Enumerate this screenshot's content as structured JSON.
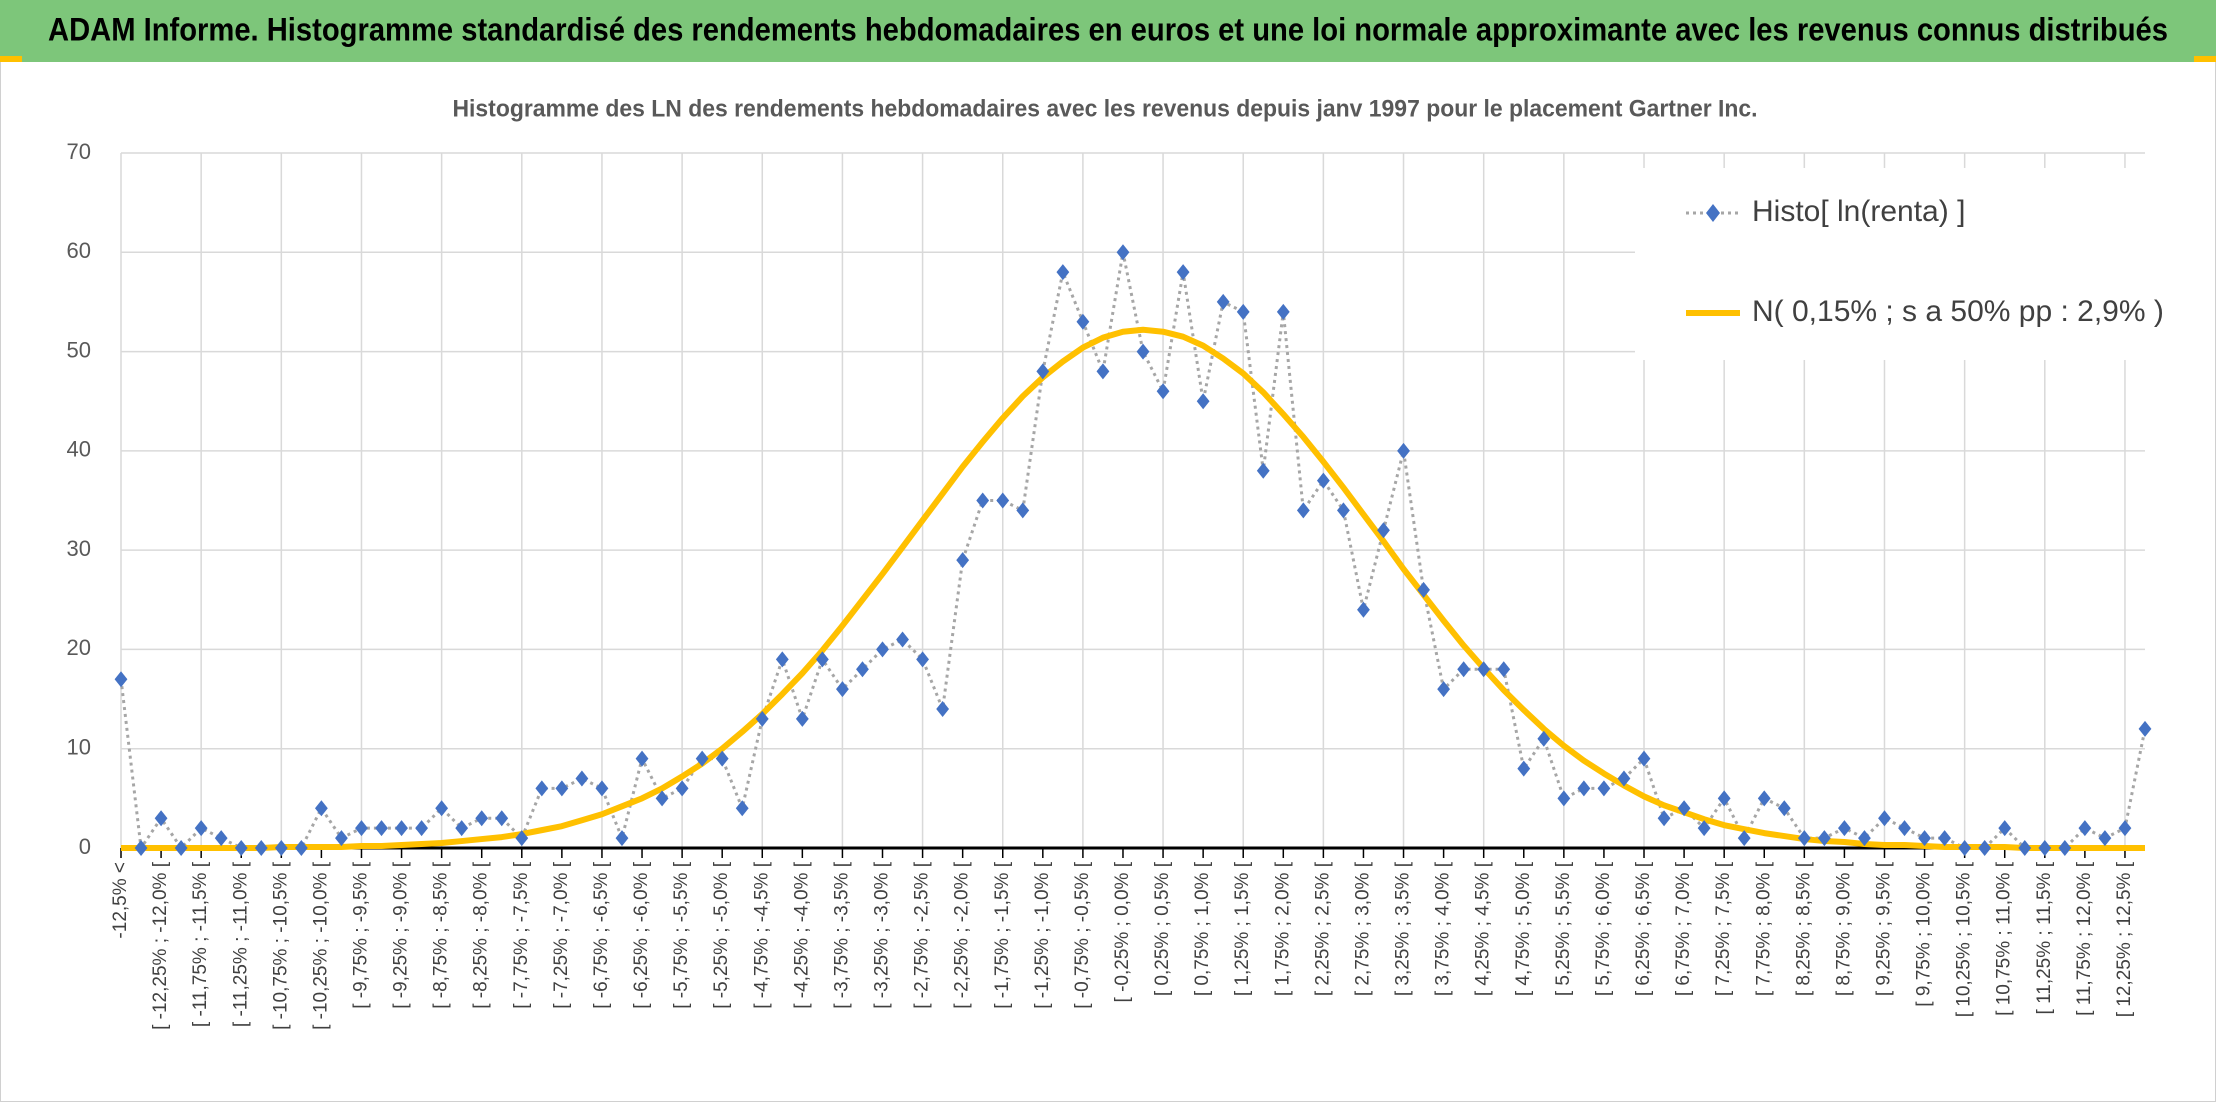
{
  "header": {
    "title": "ADAM Informe. Histogramme standardisé des rendements hebdomadaires en euros et une loi normale approximante avec les revenus connus distribués"
  },
  "chart_data": {
    "type": "line",
    "title": "Histogramme des LN des rendements hebdomadaires avec les revenus depuis janv 1997 pour le placement Gartner Inc.",
    "categories": [
      "-12,5% <",
      null,
      "[ -12,25% ; -12,0% [",
      null,
      "[ -11,75% ; -11,5% [",
      null,
      "[ -11,25% ; -11,0% [",
      null,
      "[ -10,75% ; -10,5% [",
      null,
      "[ -10,25% ; -10,0% [",
      null,
      "[ -9,75% ; -9,5% [",
      null,
      "[ -9,25% ; -9,0% [",
      null,
      "[ -8,75% ; -8,5% [",
      null,
      "[ -8,25% ; -8,0% [",
      null,
      "[ -7,75% ; -7,5% [",
      null,
      "[ -7,25% ; -7,0% [",
      null,
      "[ -6,75% ; -6,5% [",
      null,
      "[ -6,25% ; -6,0% [",
      null,
      "[ -5,75% ; -5,5% [",
      null,
      "[ -5,25% ; -5,0% [",
      null,
      "[ -4,75% ; -4,5% [",
      null,
      "[ -4,25% ; -4,0% [",
      null,
      "[ -3,75% ; -3,5% [",
      null,
      "[ -3,25% ; -3,0% [",
      null,
      "[ -2,75% ; -2,5% [",
      null,
      "[ -2,25% ; -2,0% [",
      null,
      "[ -1,75% ; -1,5% [",
      null,
      "[ -1,25% ; -1,0% [",
      null,
      "[ -0,75% ; -0,5% [",
      null,
      "[ -0,25% ; 0,0% [",
      null,
      "[ 0,25% ; 0,5% [",
      null,
      "[ 0,75% ; 1,0% [",
      null,
      "[ 1,25% ; 1,5% [",
      null,
      "[ 1,75% ; 2,0% [",
      null,
      "[ 2,25% ; 2,5% [",
      null,
      "[ 2,75% ; 3,0% [",
      null,
      "[ 3,25% ; 3,5% [",
      null,
      "[ 3,75% ; 4,0% [",
      null,
      "[ 4,25% ; 4,5% [",
      null,
      "[ 4,75% ; 5,0% [",
      null,
      "[ 5,25% ; 5,5% [",
      null,
      "[ 5,75% ; 6,0% [",
      null,
      "[ 6,25% ; 6,5% [",
      null,
      "[ 6,75% ; 7,0% [",
      null,
      "[ 7,25% ; 7,5% [",
      null,
      "[ 7,75% ; 8,0% [",
      null,
      "[ 8,25% ; 8,5% [",
      null,
      "[ 8,75% ; 9,0% [",
      null,
      "[ 9,25% ; 9,5% [",
      null,
      "[ 9,75% ; 10,0% [",
      null,
      "[ 10,25% ; 10,5% [",
      null,
      "[ 10,75% ; 11,0% [",
      null,
      "[ 11,25% ; 11,5% [",
      null,
      "[ 11,75% ; 12,0% [",
      null,
      "[ 12,25% ; 12,5% [",
      null
    ],
    "series": [
      {
        "name": "Histo[ ln(renta) ]",
        "color": "#4472c4",
        "line_color": "#a6a6a6",
        "marker": "diamond",
        "values": [
          17,
          0,
          3,
          0,
          2,
          1,
          0,
          0,
          0,
          0,
          4,
          1,
          2,
          2,
          2,
          2,
          4,
          2,
          3,
          3,
          1,
          6,
          6,
          7,
          6,
          1,
          9,
          5,
          6,
          9,
          9,
          4,
          13,
          19,
          13,
          19,
          16,
          18,
          20,
          21,
          19,
          14,
          29,
          35,
          35,
          34,
          48,
          58,
          53,
          48,
          60,
          50,
          46,
          58,
          45,
          55,
          54,
          38,
          54,
          34,
          37,
          34,
          24,
          32,
          40,
          26,
          16,
          18,
          18,
          18,
          8,
          11,
          5,
          6,
          6,
          7,
          9,
          3,
          4,
          2,
          5,
          1,
          5,
          4,
          1,
          1,
          2,
          1,
          3,
          2,
          1,
          1,
          0,
          0,
          2,
          0,
          0,
          0,
          2,
          1,
          2,
          12
        ]
      },
      {
        "name": "N( 0,15% ; s a 50% pp : 2,9% )",
        "color": "#ffc000",
        "values": [
          0,
          0,
          0,
          0,
          0,
          0,
          0,
          0,
          0.1,
          0.1,
          0.1,
          0.1,
          0.2,
          0.2,
          0.3,
          0.4,
          0.5,
          0.7,
          0.9,
          1.1,
          1.4,
          1.8,
          2.2,
          2.8,
          3.4,
          4.2,
          5.0,
          6.0,
          7.2,
          8.5,
          10.0,
          11.7,
          13.5,
          15.5,
          17.6,
          19.9,
          22.4,
          25.0,
          27.6,
          30.3,
          33.0,
          35.7,
          38.4,
          40.9,
          43.3,
          45.5,
          47.4,
          49.0,
          50.4,
          51.4,
          52.0,
          52.2,
          52.0,
          51.5,
          50.6,
          49.3,
          47.8,
          45.9,
          43.7,
          41.4,
          38.9,
          36.3,
          33.6,
          30.9,
          28.1,
          25.5,
          22.9,
          20.4,
          18.1,
          15.9,
          13.9,
          12.0,
          10.3,
          8.8,
          7.5,
          6.3,
          5.2,
          4.3,
          3.6,
          2.9,
          2.3,
          1.9,
          1.5,
          1.2,
          0.9,
          0.7,
          0.6,
          0.4,
          0.3,
          0.3,
          0.2,
          0.1,
          0.1,
          0.1,
          0.1,
          0,
          0,
          0,
          0,
          0,
          0,
          0
        ]
      }
    ],
    "ylim": [
      0,
      70
    ],
    "yticks": [
      0,
      10,
      20,
      30,
      40,
      50,
      60,
      70
    ],
    "grid": true,
    "legend": "top-right"
  }
}
